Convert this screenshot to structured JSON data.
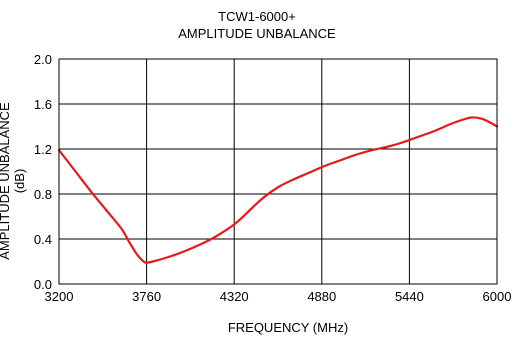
{
  "chart_data": {
    "type": "line",
    "title": "TCW1-6000+",
    "subtitle": "AMPLITUDE UNBALANCE",
    "xlabel": "FREQUENCY (MHz)",
    "ylabel": "AMPLITUDE UNBALANCE (dB)",
    "xlim": [
      3200,
      6000
    ],
    "ylim": [
      0,
      2.0
    ],
    "xticks": [
      3200,
      3760,
      4320,
      4880,
      5440,
      6000
    ],
    "xtick_labels": [
      "3200",
      "3760",
      "4320",
      "4880",
      "5440",
      "6000"
    ],
    "yticks": [
      0,
      0.4,
      0.8,
      1.2,
      1.6,
      2.0
    ],
    "ytick_labels": [
      "0.0",
      "0.4",
      "0.8",
      "1.2",
      "1.6",
      "2.0"
    ],
    "grid": true,
    "series": [
      {
        "color": "#e41a1c",
        "x": [
          3200,
          3300,
          3400,
          3500,
          3600,
          3650,
          3700,
          3740,
          3760,
          3800,
          3900,
          4000,
          4100,
          4200,
          4320,
          4400,
          4500,
          4600,
          4700,
          4800,
          4900,
          5000,
          5100,
          5200,
          5300,
          5400,
          5500,
          5600,
          5700,
          5780,
          5840,
          5900,
          5950,
          6000
        ],
        "y": [
          1.19,
          1.01,
          0.83,
          0.66,
          0.49,
          0.37,
          0.26,
          0.2,
          0.19,
          0.2,
          0.24,
          0.29,
          0.35,
          0.42,
          0.53,
          0.63,
          0.76,
          0.86,
          0.93,
          0.99,
          1.05,
          1.1,
          1.15,
          1.19,
          1.22,
          1.26,
          1.31,
          1.36,
          1.42,
          1.46,
          1.48,
          1.47,
          1.44,
          1.4
        ]
      }
    ]
  }
}
